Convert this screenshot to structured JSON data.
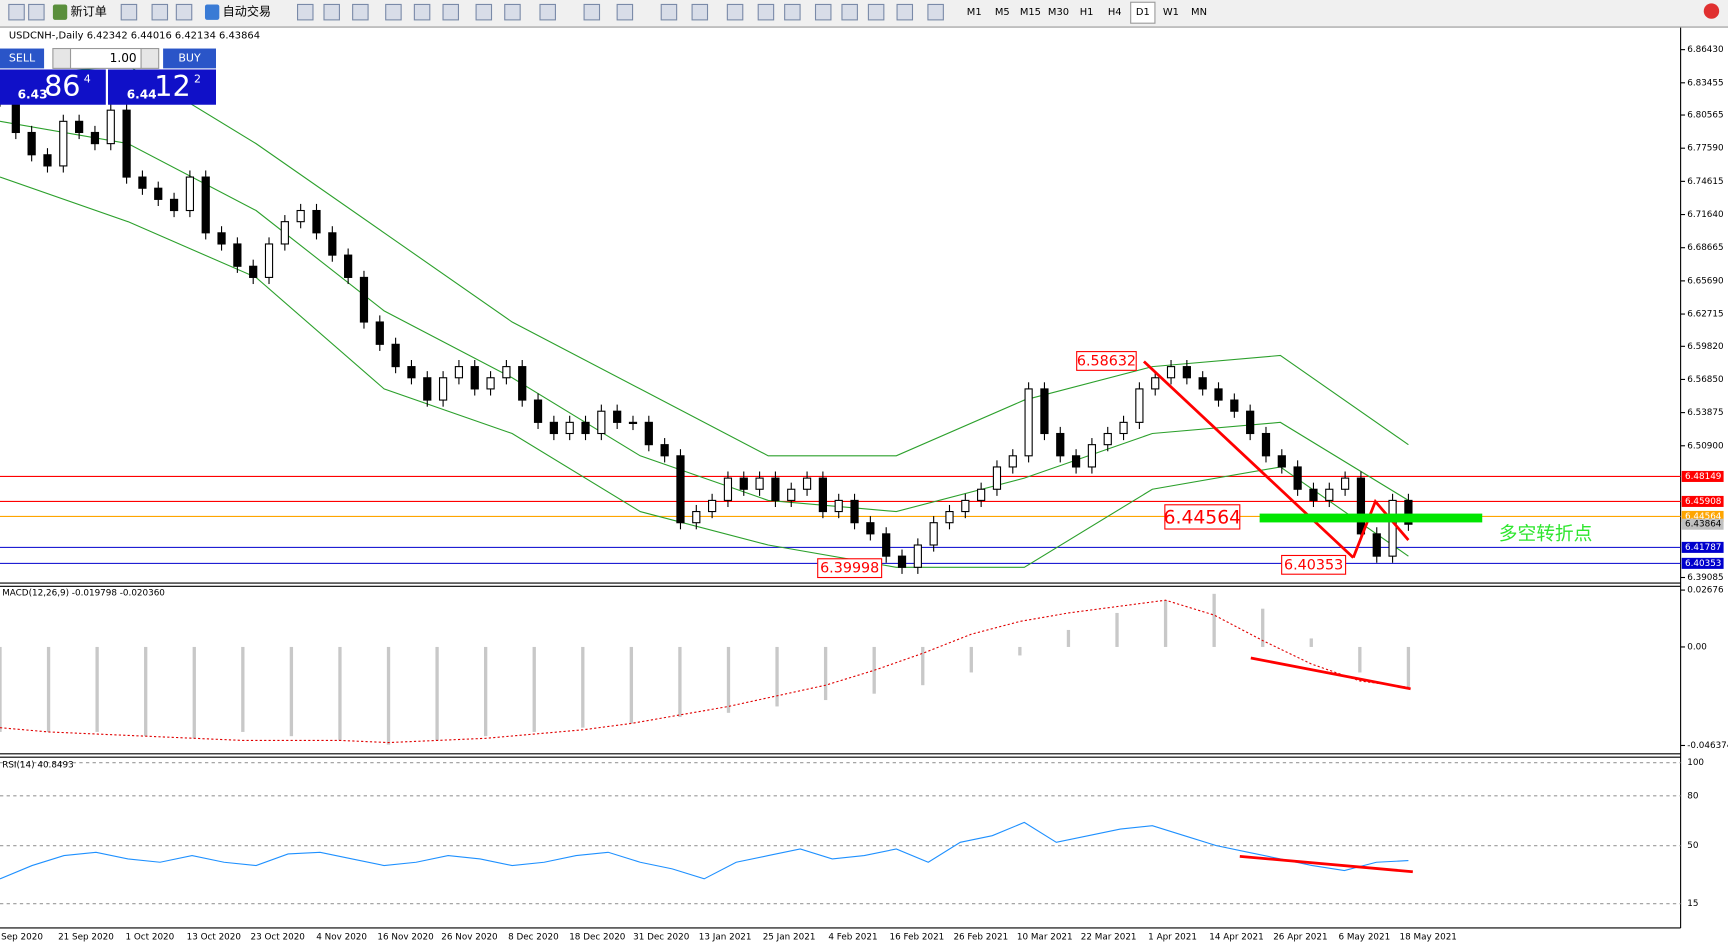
{
  "toolbar": {
    "buttons": [
      "新订单",
      "自动交易"
    ],
    "timeframes": [
      "M1",
      "M5",
      "M15",
      "M30",
      "H1",
      "H4",
      "D1",
      "W1",
      "MN"
    ]
  },
  "chart": {
    "header": "USDCNH-,Daily  6.42342 6.44016 6.42134 6.43864",
    "trade_panel": {
      "sell": "SELL",
      "buy": "BUY",
      "lot": "1.00",
      "bid_big": "6.43",
      "bid_digits": "86",
      "bid_small": "4",
      "ask_big": "6.44",
      "ask_digits": "12",
      "ask_small": "2"
    },
    "price_ticks": [
      {
        "value": 6.8643,
        "label": "6.86430"
      },
      {
        "value": 6.83455,
        "label": "6.83455"
      },
      {
        "value": 6.80565,
        "label": "6.80565"
      },
      {
        "value": 6.7759,
        "label": "6.77590"
      },
      {
        "value": 6.74615,
        "label": "6.74615"
      },
      {
        "value": 6.7164,
        "label": "6.71640"
      },
      {
        "value": 6.68665,
        "label": "6.68665"
      },
      {
        "value": 6.6569,
        "label": "6.65690"
      },
      {
        "value": 6.62715,
        "label": "6.62715"
      },
      {
        "value": 6.5982,
        "label": "6.59820"
      },
      {
        "value": 6.5685,
        "label": "6.56850"
      },
      {
        "value": 6.53875,
        "label": "6.53875"
      },
      {
        "value": 6.509,
        "label": "6.50900"
      },
      {
        "value": 6.39085,
        "label": "6.39085"
      }
    ],
    "levels": [
      {
        "value": 6.48149,
        "label": "6.48149",
        "color": "#ff0000"
      },
      {
        "value": 6.45908,
        "label": "6.45908",
        "color": "#ff0000"
      },
      {
        "value": 6.44564,
        "label": "6.44564",
        "color": "#ffa500"
      },
      {
        "value": 6.43864,
        "label": "6.43864",
        "color": "#c0c0c0"
      },
      {
        "value": 6.41787,
        "label": "6.41787",
        "color": "#0000cd"
      },
      {
        "value": 6.40353,
        "label": "6.40353",
        "color": "#0000cd"
      }
    ],
    "closes": [
      6.82,
      6.79,
      6.77,
      6.76,
      6.8,
      6.79,
      6.78,
      6.81,
      6.75,
      6.74,
      6.73,
      6.72,
      6.75,
      6.7,
      6.69,
      6.67,
      6.66,
      6.69,
      6.71,
      6.72,
      6.7,
      6.68,
      6.66,
      6.62,
      6.6,
      6.58,
      6.57,
      6.55,
      6.57,
      6.58,
      6.56,
      6.57,
      6.58,
      6.55,
      6.53,
      6.52,
      6.53,
      6.52,
      6.54,
      6.53,
      6.53,
      6.51,
      6.5,
      6.44,
      6.45,
      6.46,
      6.48,
      6.47,
      6.48,
      6.46,
      6.47,
      6.48,
      6.45,
      6.46,
      6.44,
      6.43,
      6.41,
      6.4,
      6.42,
      6.44,
      6.45,
      6.46,
      6.47,
      6.49,
      6.5,
      6.56,
      6.52,
      6.5,
      6.49,
      6.51,
      6.52,
      6.53,
      6.56,
      6.57,
      6.58,
      6.57,
      6.56,
      6.55,
      6.54,
      6.52,
      6.5,
      6.49,
      6.47,
      6.46,
      6.47,
      6.48,
      6.43,
      6.41,
      6.46,
      6.43864
    ],
    "upper_band": [
      6.84,
      6.85,
      6.78,
      6.7,
      6.62,
      6.56,
      6.5,
      6.5,
      6.55,
      6.58,
      6.59,
      6.51
    ],
    "middle_band": [
      6.8,
      6.78,
      6.72,
      6.63,
      6.57,
      6.5,
      6.46,
      6.45,
      6.48,
      6.52,
      6.53,
      6.46
    ],
    "lower_band": [
      6.75,
      6.71,
      6.66,
      6.56,
      6.52,
      6.45,
      6.42,
      6.4,
      6.4,
      6.47,
      6.49,
      6.41
    ],
    "annotations": [
      "6.58632",
      "6.39998",
      "6.44564",
      "6.40353"
    ],
    "note": "多空转折点",
    "dates": [
      "Sep 2020",
      "21 Sep 2020",
      "1 Oct 2020",
      "13 Oct 2020",
      "23 Oct 2020",
      "4 Nov 2020",
      "16 Nov 2020",
      "26 Nov 2020",
      "8 Dec 2020",
      "18 Dec 2020",
      "31 Dec 2020",
      "13 Jan 2021",
      "25 Jan 2021",
      "4 Feb 2021",
      "16 Feb 2021",
      "26 Feb 2021",
      "10 Mar 2021",
      "22 Mar 2021",
      "1 Apr 2021",
      "14 Apr 2021",
      "26 Apr 2021",
      "6 May 2021",
      "18 May 2021"
    ]
  },
  "macd": {
    "label": "MACD(12,26,9) -0.019798 -0.020360",
    "ticks": [
      {
        "value": 0.02676,
        "label": "0.02676"
      },
      {
        "value": 0,
        "label": "0.00"
      },
      {
        "value": -0.046374,
        "label": "-0.046374"
      }
    ],
    "histogram": [
      -0.04,
      -0.04,
      -0.04,
      -0.042,
      -0.043,
      -0.04,
      -0.042,
      -0.044,
      -0.046,
      -0.044,
      -0.042,
      -0.04,
      -0.038,
      -0.036,
      -0.033,
      -0.031,
      -0.028,
      -0.025,
      -0.022,
      -0.018,
      -0.012,
      -0.004,
      0.008,
      0.016,
      0.022,
      0.025,
      0.018,
      0.004,
      -0.012,
      -0.02
    ],
    "signal": [
      -0.038,
      -0.04,
      -0.041,
      -0.042,
      -0.043,
      -0.044,
      -0.044,
      -0.044,
      -0.045,
      -0.044,
      -0.043,
      -0.041,
      -0.039,
      -0.036,
      -0.032,
      -0.028,
      -0.023,
      -0.018,
      -0.011,
      -0.003,
      0.006,
      0.012,
      0.016,
      0.019,
      0.022,
      0.015,
      0.003,
      -0.008,
      -0.016,
      -0.019
    ]
  },
  "rsi": {
    "label": "RSI(14) 40.8493",
    "ticks": [
      100,
      80,
      50,
      15
    ],
    "values": [
      30,
      38,
      44,
      46,
      42,
      40,
      44,
      40,
      38,
      45,
      46,
      42,
      38,
      40,
      44,
      42,
      38,
      40,
      44,
      46,
      40,
      36,
      30,
      40,
      44,
      48,
      42,
      44,
      48,
      40,
      52,
      56,
      64,
      52,
      56,
      60,
      62,
      56,
      50,
      46,
      42,
      38,
      35,
      40,
      41
    ]
  }
}
